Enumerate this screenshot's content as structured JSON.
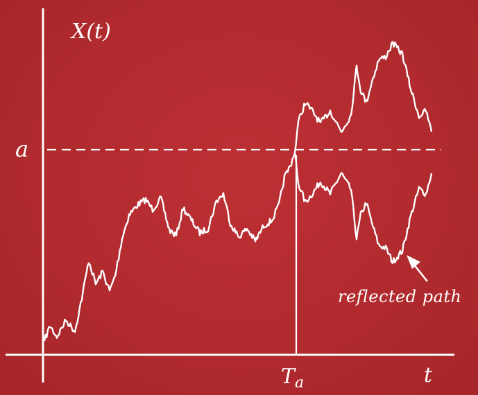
{
  "labels": {
    "y_axis": "X(t)",
    "x_axis": "t",
    "level": "a",
    "hitting_time_main": "T",
    "hitting_time_sub": "a",
    "reflected_path": "reflected path"
  },
  "colors": {
    "background": "#b32a2e",
    "ink": "#ffffff"
  }
}
